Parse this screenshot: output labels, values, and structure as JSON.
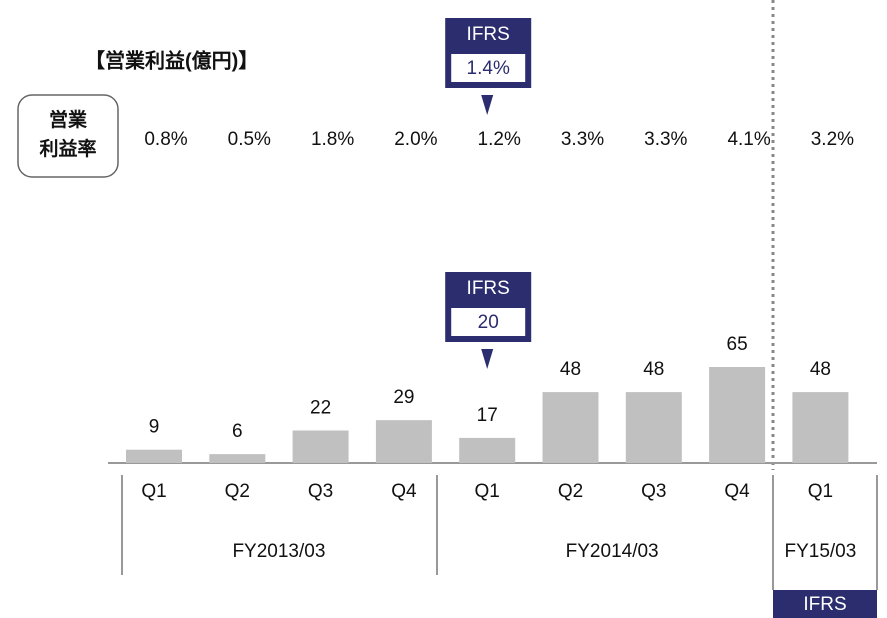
{
  "chart_data": {
    "type": "bar",
    "title": "【営業利益(億円)】",
    "margin_label": [
      "営業",
      "利益率"
    ],
    "color": "#c0c0c0",
    "groups": [
      {
        "label": "FY2013/03",
        "categories": [
          "Q1",
          "Q2",
          "Q3",
          "Q4"
        ],
        "values": [
          9,
          6,
          22,
          29
        ],
        "margins": [
          0.8,
          0.5,
          1.8,
          2.0
        ],
        "margin_labels": [
          "0.8%",
          "0.5%",
          "1.8%",
          "2.0%"
        ]
      },
      {
        "label": "FY2014/03",
        "categories": [
          "Q1",
          "Q2",
          "Q3",
          "Q4"
        ],
        "values": [
          17,
          48,
          48,
          65
        ],
        "margins": [
          1.2,
          3.3,
          3.3,
          4.1
        ],
        "margin_labels": [
          "1.2%",
          "3.3%",
          "3.3%",
          "4.1%"
        ]
      },
      {
        "label": "FY15/03",
        "categories": [
          "Q1"
        ],
        "values": [
          48
        ],
        "margins": [
          3.2
        ],
        "margin_labels": [
          "3.2%"
        ]
      }
    ],
    "callouts": [
      {
        "label": "IFRS",
        "value": 1.4,
        "value_label": "1.4%"
      },
      {
        "label": "IFRS",
        "value": 20
      }
    ],
    "badge": "IFRS"
  }
}
